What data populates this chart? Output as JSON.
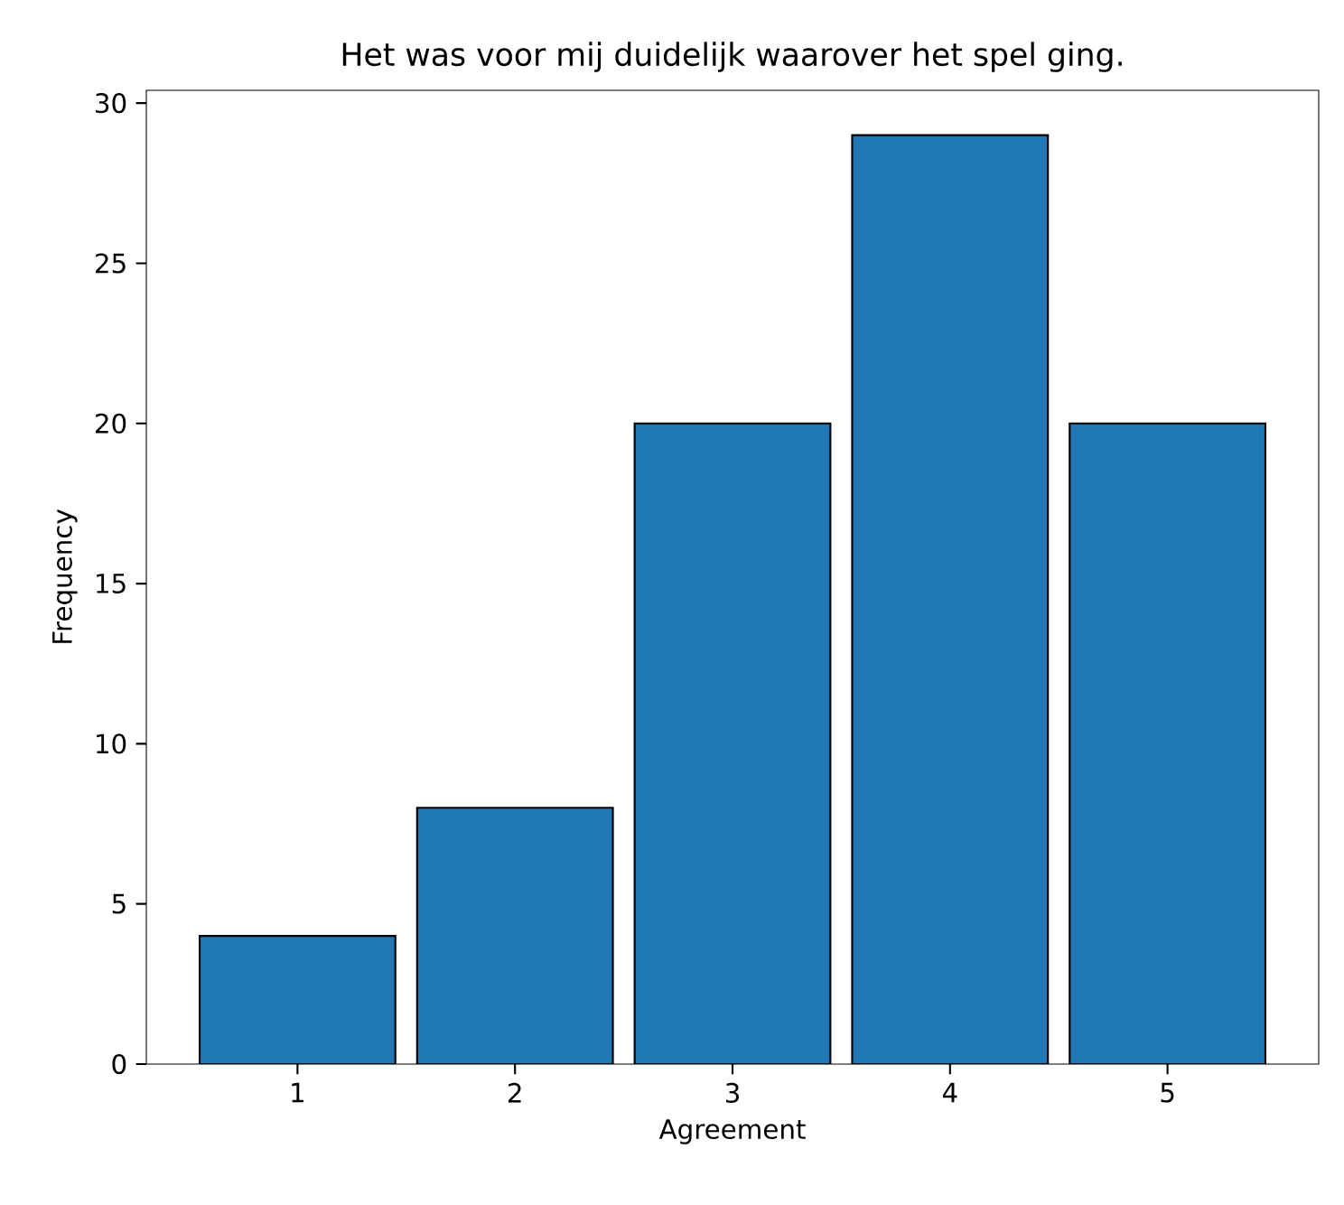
{
  "chart_data": {
    "type": "bar",
    "title": "Het was voor mij duidelijk waarover het spel ging.",
    "xlabel": "Agreement",
    "ylabel": "Frequency",
    "categories": [
      "1",
      "2",
      "3",
      "4",
      "5"
    ],
    "values": [
      4,
      8,
      20,
      29,
      20
    ],
    "color": "#1f77b4",
    "ylim": [
      0,
      30.4
    ],
    "yticks": [
      0,
      5,
      10,
      15,
      20,
      25,
      30
    ],
    "grid": false
  }
}
